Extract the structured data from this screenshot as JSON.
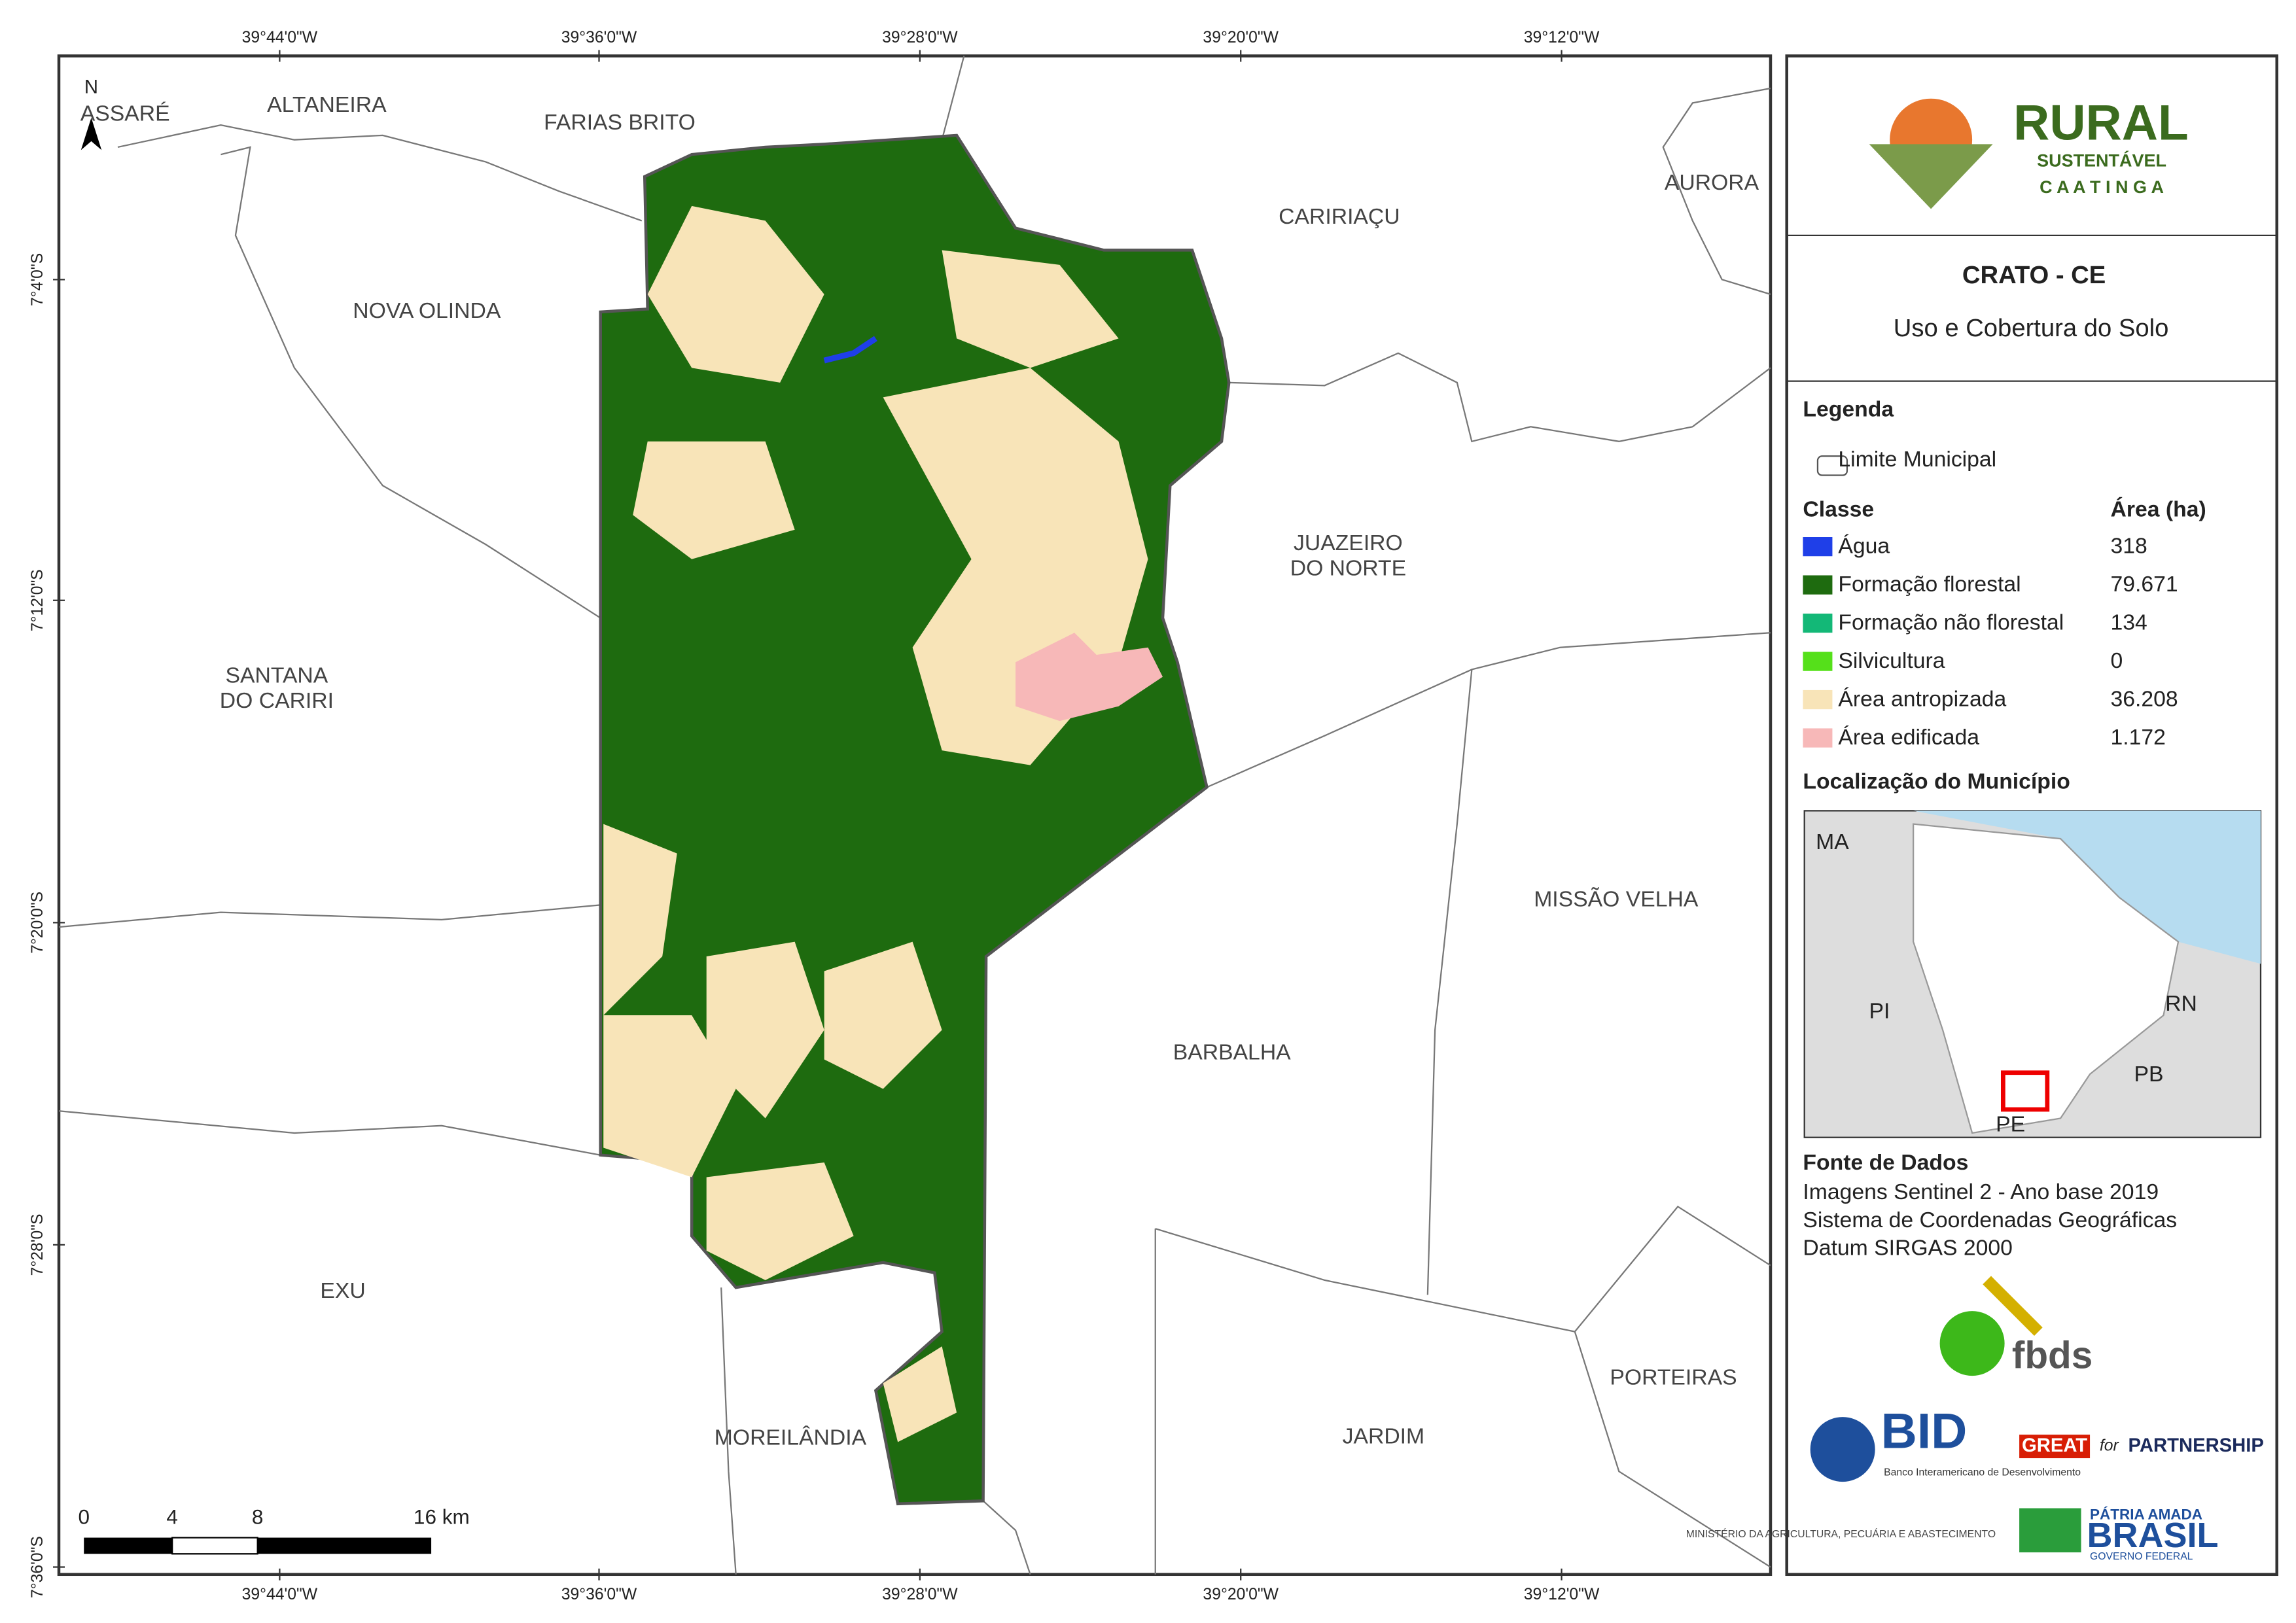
{
  "map": {
    "north": "N",
    "lon_labels": [
      "39°44'0\"W",
      "39°36'0\"W",
      "39°28'0\"W",
      "39°20'0\"W",
      "39°12'0\"W"
    ],
    "lat_labels": [
      "7°4'0\"S",
      "7°12'0\"S",
      "7°20'0\"S",
      "7°28'0\"S",
      "7°36'0\"S"
    ],
    "places": [
      {
        "lines": [
          "ASSARÉ"
        ]
      },
      {
        "lines": [
          "ALTANEIRA"
        ]
      },
      {
        "lines": [
          "FARIAS BRITO"
        ]
      },
      {
        "lines": [
          "CARIRIAÇU"
        ]
      },
      {
        "lines": [
          "AURORA"
        ]
      },
      {
        "lines": [
          "NOVA OLINDA"
        ]
      },
      {
        "lines": [
          "JUAZEIRO",
          "DO NORTE"
        ]
      },
      {
        "lines": [
          "SANTANA",
          "DO CARIRI"
        ]
      },
      {
        "lines": [
          "MISSÃO VELHA"
        ]
      },
      {
        "lines": [
          "BARBALHA"
        ]
      },
      {
        "lines": [
          "EXU"
        ]
      },
      {
        "lines": [
          "PORTEIRAS"
        ]
      },
      {
        "lines": [
          "JARDIM"
        ]
      },
      {
        "lines": [
          "MOREILÂNDIA"
        ]
      }
    ],
    "scale": [
      "0",
      "4",
      "8",
      "16 km"
    ]
  },
  "panel": {
    "logo": {
      "title": "RURAL",
      "subtitle": "SUSTENTÁVEL",
      "tagline": "C A A T I N G A"
    },
    "title": "CRATO - CE",
    "subtitle": "Uso e Cobertura do Solo",
    "legend_title": "Legenda",
    "boundary": "Limite Municipal",
    "class_header": "Classe",
    "area_header": "Área (ha)",
    "classes": [
      {
        "name": "Água",
        "area": "318",
        "color": "#1f3fe8"
      },
      {
        "name": "Formação florestal",
        "area": "79.671",
        "color": "#1e6b0f"
      },
      {
        "name": "Formação não florestal",
        "area": "134",
        "color": "#13b877"
      },
      {
        "name": "Silvicultura",
        "area": "0",
        "color": "#55e01a"
      },
      {
        "name": "Área antropizada",
        "area": "36.208",
        "color": "#f8e4b8"
      },
      {
        "name": "Área edificada",
        "area": "1.172",
        "color": "#f7b8b8"
      }
    ],
    "location_title": "Localização do Município",
    "location_labels": [
      "MA",
      "PI",
      "RN",
      "PB",
      "PE"
    ],
    "sources_title": "Fonte de Dados",
    "sources": [
      "Imagens Sentinel 2 - Ano base 2019",
      "Sistema de Coordenadas Geográficas",
      "Datum SIRGAS 2000"
    ],
    "logos": {
      "fbds": "fbds",
      "bid": "BID",
      "bid_name": "Banco Interamericano de Desenvolvimento",
      "great": "GREAT",
      "for": "for",
      "partnership": "PARTNERSHIP",
      "ministry": "MINISTÉRIO DA AGRICULTURA, PECUÁRIA E ABASTECIMENTO",
      "patria": "PÁTRIA AMADA",
      "brasil": "BRASIL",
      "governo": "GOVERNO FEDERAL"
    }
  }
}
